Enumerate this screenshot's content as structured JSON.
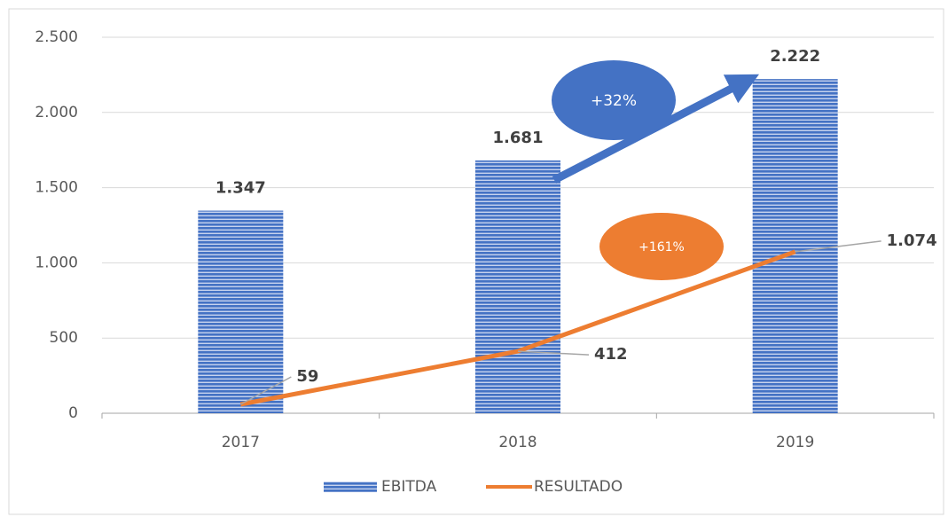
{
  "chart_data": {
    "type": "bar",
    "categories": [
      "2017",
      "2018",
      "2019"
    ],
    "series": [
      {
        "name": "EBITDA",
        "type": "bar",
        "color": "#4472c4",
        "values": [
          1347,
          1681,
          2222
        ],
        "value_labels": [
          "1.347",
          "1.681",
          "2.222"
        ]
      },
      {
        "name": "RESULTADO",
        "type": "line",
        "color": "#ed7d31",
        "values": [
          59,
          412,
          1074
        ],
        "value_labels": [
          "59",
          "412",
          "1.074"
        ]
      }
    ],
    "ylim": [
      0,
      2500
    ],
    "yticks": [
      0,
      500,
      {
        "value": 1000,
        "label": "1.000"
      },
      {
        "value": 1500,
        "label": "1.500"
      },
      {
        "value": 2000,
        "label": "2.000"
      },
      {
        "value": 2500,
        "label": "2.500"
      }
    ],
    "grid": true,
    "legend": "bottom",
    "annotations": [
      {
        "text": "+32%",
        "color": "#4472c4"
      },
      {
        "text": "+161%",
        "color": "#ed7d31"
      }
    ]
  }
}
